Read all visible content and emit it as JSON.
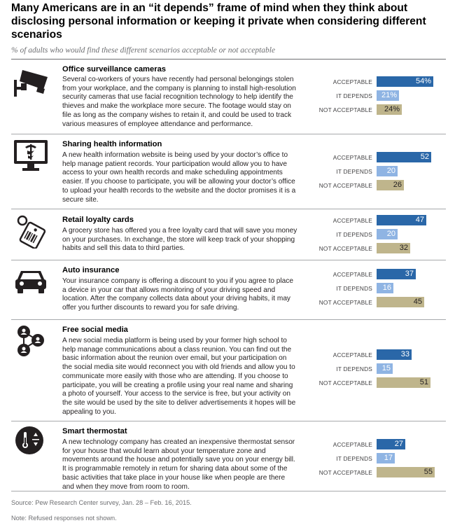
{
  "title": "Many Americans are in an “it depends” frame of mind when they think about disclosing personal information or keeping it private when considering different scenarios",
  "subtitle": "% of adults who would find these different scenarios acceptable or not acceptable",
  "labels": {
    "acceptable": "ACCEPTABLE",
    "depends": "IT DEPENDS",
    "not": "NOT ACCEPTABLE"
  },
  "scenarios": [
    {
      "title": "Office surveillance cameras",
      "icon": "surveillance-camera-icon",
      "desc": "Several co-workers of yours have recently had personal belongings stolen from your workplace, and the company is planning to install high-resolution security cameras that use facial recognition technology to help identify the thieves and make the workplace more secure. The footage would stay on file as long as the company wishes to retain it, and could be used to track various measures of employee attendance and performance.",
      "acc_label": "54%",
      "dep_label": "21%",
      "not_label": "24%"
    },
    {
      "title": "Sharing health information",
      "icon": "health-monitor-icon",
      "desc": "A new health information website is being used by your doctor’s office to help manage patient records. Your participation would allow you to have access to your own health records and make scheduling appointments easier. If you choose to participate, you will be allowing your doctor’s office to upload your health records to the website and the doctor promises it is a secure site.",
      "acc_label": "52",
      "dep_label": "20",
      "not_label": "26"
    },
    {
      "title": "Retail loyalty cards",
      "icon": "loyalty-card-tag-icon",
      "desc": "A grocery store has offered you a free loyalty card that will save you money on your purchases. In exchange, the store will keep track of your shopping habits and sell this data to third parties.",
      "acc_label": "47",
      "dep_label": "20",
      "not_label": "32"
    },
    {
      "title": "Auto insurance",
      "icon": "car-icon",
      "desc": "Your insurance company is offering a discount to you if you agree to place a device in your car that allows monitoring of your driving speed and location. After the company collects data about your driving habits, it may offer you further discounts to reward you for safe driving.",
      "acc_label": "37",
      "dep_label": "16",
      "not_label": "45"
    },
    {
      "title": "Free social media",
      "icon": "social-network-icon",
      "desc": "A new social media platform is being used by your former high school to help manage communications about a class reunion. You can find out the basic information about the reunion over email, but your participation on the social media site would reconnect you with old friends and allow you to communicate more easily with those who are attending. If you choose to participate, you will be creating a profile using your real name and sharing a photo of yourself. Your access to the service is free, but your activity on the site would be used by the site to deliver advertisements it hopes will be appealing to you.",
      "acc_label": "33",
      "dep_label": "15",
      "not_label": "51"
    },
    {
      "title": "Smart thermostat",
      "icon": "thermostat-icon",
      "desc": "A new technology company has created an inexpensive thermostat sensor for your house that would learn about your temperature zone and movements around the house and potentially save you on your energy bill. It is programmable remotely in return for sharing data about some of the basic activities that take place in your house like when people are there and when they move from room to room.",
      "acc_label": "27",
      "dep_label": "17",
      "not_label": "55"
    }
  ],
  "chart_data": {
    "type": "bar",
    "title": "Many Americans are in an “it depends” frame of mind when they think about disclosing personal information or keeping it private when considering different scenarios",
    "subtitle": "% of adults who would find these different scenarios acceptable or not acceptable",
    "categories": [
      "Office surveillance cameras",
      "Sharing health information",
      "Retail loyalty cards",
      "Auto insurance",
      "Free social media",
      "Smart thermostat"
    ],
    "series": [
      {
        "name": "ACCEPTABLE",
        "values": [
          54,
          52,
          47,
          37,
          33,
          27
        ],
        "color": "#2a67a8"
      },
      {
        "name": "IT DEPENDS",
        "values": [
          21,
          20,
          20,
          16,
          15,
          17
        ],
        "color": "#8fb4e3"
      },
      {
        "name": "NOT ACCEPTABLE",
        "values": [
          24,
          26,
          32,
          45,
          51,
          55
        ],
        "color": "#bfb58c"
      }
    ],
    "xlabel": "",
    "ylabel": "",
    "xlim": [
      0,
      55
    ],
    "orientation": "horizontal",
    "grid": false
  },
  "source": "Source: Pew Research Center survey, Jan. 28 – Feb. 16, 2015.",
  "note": "Note: Refused responses not shown."
}
